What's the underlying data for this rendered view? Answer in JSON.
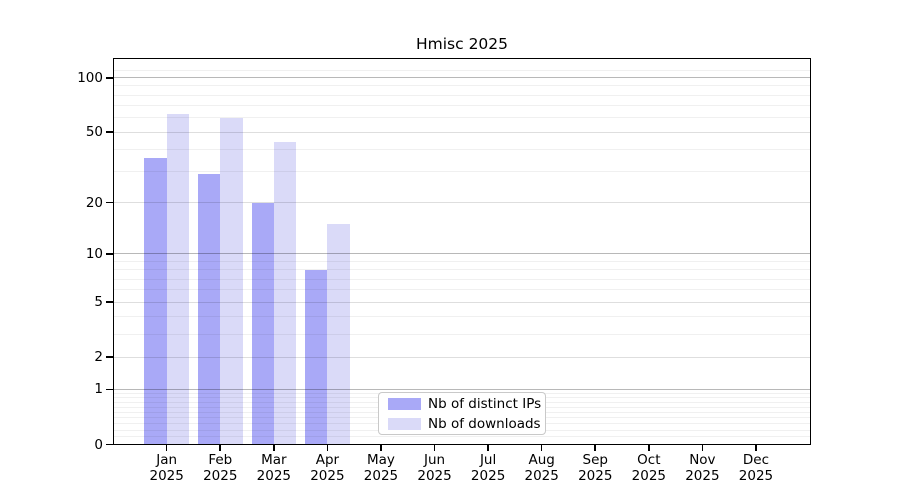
{
  "chart_data": {
    "type": "bar",
    "title": "Hmisc 2025",
    "categories": [
      "Jan",
      "Feb",
      "Mar",
      "Apr",
      "May",
      "Jun",
      "Jul",
      "Aug",
      "Sep",
      "Oct",
      "Nov",
      "Dec"
    ],
    "year_label": "2025",
    "series": [
      {
        "name": "Nb of distinct IPs",
        "color": "#a9a9f7",
        "values": [
          36,
          29,
          20,
          8,
          0,
          0,
          0,
          0,
          0,
          0,
          0,
          0
        ]
      },
      {
        "name": "Nb of downloads",
        "color": "#dadaf8",
        "values": [
          63,
          60,
          44,
          15,
          0,
          0,
          0,
          0,
          0,
          0,
          0,
          0
        ]
      }
    ],
    "y_axis": {
      "scale": "log10(1+x)",
      "ticks": [
        {
          "label": "100",
          "value": 100
        },
        {
          "label": "50",
          "value": 50
        },
        {
          "label": "20",
          "value": 20
        },
        {
          "label": "10",
          "value": 10
        },
        {
          "label": "5",
          "value": 5
        },
        {
          "label": "2",
          "value": 2
        },
        {
          "label": "1",
          "value": 1
        },
        {
          "label": "0",
          "value": 0
        }
      ],
      "ylim": [
        0,
        128
      ]
    },
    "grid": {
      "on": true,
      "power_lines": [
        1,
        10,
        100
      ],
      "labeled_lines": [
        2,
        5,
        20,
        50
      ],
      "minor_lines": [
        0.1,
        0.2,
        0.3,
        0.4,
        0.5,
        0.6,
        0.7,
        0.8,
        0.9,
        3,
        4,
        6,
        7,
        8,
        9,
        30,
        40,
        60,
        70,
        80,
        90,
        110
      ]
    },
    "legend": {
      "position": "inside-bottom-center"
    },
    "axis_color": "#000000",
    "grid_colors": {
      "power": "rgba(0,0,0,0.28)",
      "labeled": "rgba(0,0,0,0.13)",
      "minor": "rgba(0,0,0,0.06)"
    }
  }
}
